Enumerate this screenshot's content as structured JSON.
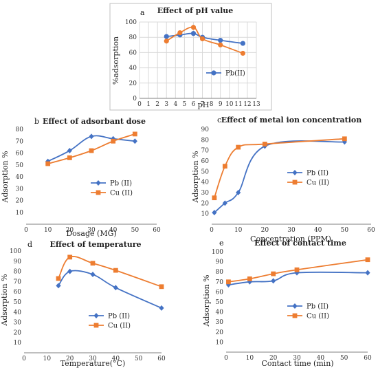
{
  "colors": {
    "blue": "#4472c4",
    "orange": "#ed7d31",
    "grid": "#d9d9d9",
    "axis": "#7f7f7f"
  },
  "chart_data": [
    {
      "id": "a",
      "panel_letter": "a",
      "type": "line",
      "title": "Effect of pH value",
      "xlabel": "pH",
      "ylabel": "%adsorption",
      "xlim": [
        0,
        13
      ],
      "ylim": [
        0,
        100
      ],
      "xticks": [
        0,
        1,
        2,
        3,
        4,
        5,
        6,
        7,
        8,
        9,
        10,
        11,
        12,
        13
      ],
      "yticks": [
        0,
        20,
        40,
        60,
        80,
        100
      ],
      "grid": true,
      "legend": "center-right",
      "series": [
        {
          "name": "Pb(II)",
          "color": "blue",
          "marker": "circle",
          "legend": true,
          "x": [
            3,
            4.5,
            6,
            7,
            9,
            11.5
          ],
          "y": [
            81,
            83,
            85,
            80,
            76,
            72
          ]
        },
        {
          "name": "",
          "color": "orange",
          "marker": "circle",
          "legend": false,
          "x": [
            3,
            4.5,
            6,
            7,
            9,
            11.5
          ],
          "y": [
            75,
            86,
            93,
            78,
            70,
            59
          ]
        }
      ]
    },
    {
      "id": "b",
      "panel_letter": "b",
      "type": "line",
      "title": "Effect of adsorbant dose",
      "xlabel": "Dosage (MG)",
      "ylabel": "Adsorption %",
      "xlim": [
        0,
        60
      ],
      "ylim": [
        0,
        80
      ],
      "xticks": [
        0,
        10,
        20,
        30,
        40,
        50,
        60
      ],
      "yticks": [
        10,
        20,
        30,
        40,
        50,
        60,
        70,
        80
      ],
      "grid": false,
      "legend": "center-right",
      "series": [
        {
          "name": "Pb (II)",
          "color": "blue",
          "marker": "diamond",
          "legend": true,
          "x": [
            10,
            20,
            30,
            40,
            50
          ],
          "y": [
            53,
            62,
            74,
            72,
            70
          ]
        },
        {
          "name": "Cu (II)",
          "color": "orange",
          "marker": "square",
          "legend": true,
          "x": [
            10,
            20,
            30,
            40,
            50
          ],
          "y": [
            51,
            56,
            62,
            70,
            76
          ]
        }
      ]
    },
    {
      "id": "c",
      "panel_letter": "c",
      "type": "line",
      "title": "Effect of metal ion concentration",
      "xlabel": "Concentration (PPM)",
      "ylabel": "Adsorption %",
      "xlim": [
        0,
        60
      ],
      "ylim": [
        0,
        90
      ],
      "xticks": [
        0,
        10,
        20,
        30,
        40,
        50,
        60
      ],
      "yticks": [
        10,
        20,
        30,
        40,
        50,
        60,
        70,
        80,
        90
      ],
      "grid": false,
      "legend": "center-right",
      "series": [
        {
          "name": "Pb (II)",
          "color": "blue",
          "marker": "diamond",
          "legend": true,
          "x": [
            1,
            5,
            10,
            20,
            50
          ],
          "y": [
            11,
            20,
            30,
            74,
            78
          ]
        },
        {
          "name": "Cu (II)",
          "color": "orange",
          "marker": "square",
          "legend": true,
          "x": [
            1,
            5,
            10,
            20,
            50
          ],
          "y": [
            25,
            55,
            73,
            76,
            81
          ]
        }
      ]
    },
    {
      "id": "d",
      "panel_letter": "d",
      "type": "line",
      "title": "Effect of temperature",
      "xlabel": "Temperature(°C)",
      "ylabel": "Adsorption %",
      "xlim": [
        0,
        60
      ],
      "ylim": [
        0,
        100
      ],
      "xticks": [
        0,
        10,
        20,
        30,
        40,
        50,
        60
      ],
      "yticks": [
        10,
        20,
        30,
        40,
        50,
        60,
        70,
        80,
        90,
        100
      ],
      "grid": false,
      "legend": "center-right",
      "series": [
        {
          "name": "Pb (II)",
          "color": "blue",
          "marker": "diamond",
          "legend": true,
          "x": [
            15,
            20,
            30,
            40,
            60
          ],
          "y": [
            66,
            80,
            77,
            64,
            44
          ]
        },
        {
          "name": "Cu (II)",
          "color": "orange",
          "marker": "square",
          "legend": true,
          "x": [
            15,
            20,
            30,
            40,
            60
          ],
          "y": [
            73,
            94,
            88,
            81,
            65
          ]
        }
      ]
    },
    {
      "id": "e",
      "panel_letter": "e",
      "type": "line",
      "title": "Effect of contact time",
      "xlabel": "Contact time (min)",
      "ylabel": "Adsorption %",
      "xlim": [
        0,
        60
      ],
      "ylim": [
        0,
        100
      ],
      "xticks": [
        0,
        10,
        20,
        30,
        40,
        50,
        60
      ],
      "yticks": [
        10,
        20,
        30,
        40,
        50,
        60,
        70,
        80,
        90,
        100
      ],
      "grid": false,
      "legend": "center-right",
      "series": [
        {
          "name": "Pb (II)",
          "color": "blue",
          "marker": "diamond",
          "legend": true,
          "x": [
            1,
            10,
            20,
            30,
            60
          ],
          "y": [
            67,
            70,
            71,
            79,
            79
          ]
        },
        {
          "name": "Cu (II)",
          "color": "orange",
          "marker": "square",
          "legend": true,
          "x": [
            1,
            10,
            20,
            30,
            60
          ],
          "y": [
            70,
            73,
            78,
            82,
            92
          ]
        }
      ]
    }
  ]
}
